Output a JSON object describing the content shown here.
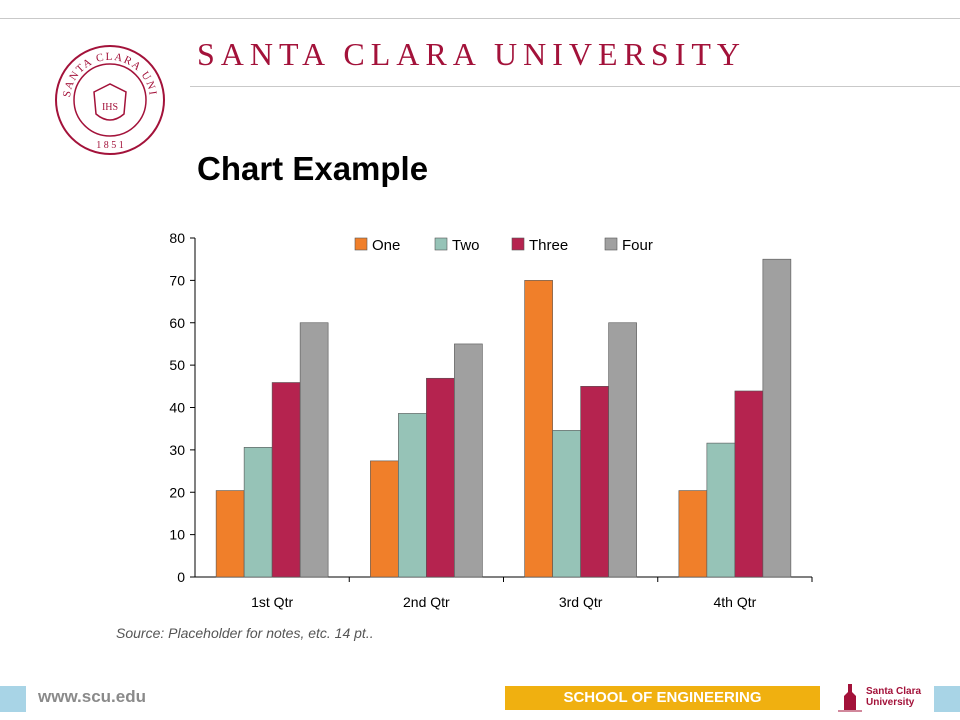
{
  "header": {
    "university": "SANTA CLARA UNIVERSITY",
    "seal_text": "SANTA CLARA UNIVERSITY",
    "seal_year": "1 8 5 1",
    "seal_monogram": "IHS"
  },
  "slide": {
    "title": "Chart Example",
    "source": "Source: Placeholder for notes, etc. 14 pt.."
  },
  "footer": {
    "url": "www.scu.edu",
    "school": "SCHOOL OF ENGINEERING",
    "logo_line1": "Santa Clara",
    "logo_line2": "University"
  },
  "colors": {
    "brand": "#a3123a",
    "accent": "#f0b010",
    "footer_blue": "#a8d4e6"
  },
  "chart_data": {
    "type": "bar",
    "categories": [
      "1st Qtr",
      "2nd Qtr",
      "3rd Qtr",
      "4th Qtr"
    ],
    "series": [
      {
        "name": "One",
        "values": [
          20.4,
          27.4,
          70,
          20.4
        ],
        "color": "#f07f2a"
      },
      {
        "name": "Two",
        "values": [
          30.6,
          38.6,
          34.6,
          31.6
        ],
        "color": "#96c3b7"
      },
      {
        "name": "Three",
        "values": [
          45.9,
          46.9,
          45,
          43.9
        ],
        "color": "#b5234f"
      },
      {
        "name": "Four",
        "values": [
          60,
          55,
          60,
          75
        ],
        "color": "#a0a0a0"
      }
    ],
    "yticks": [
      "0",
      "10",
      "20",
      "30",
      "40",
      "50",
      "60",
      "70",
      "80"
    ],
    "ylim": [
      0,
      80
    ],
    "title": "",
    "xlabel": "",
    "ylabel": "",
    "legend": "top",
    "grid": false
  }
}
